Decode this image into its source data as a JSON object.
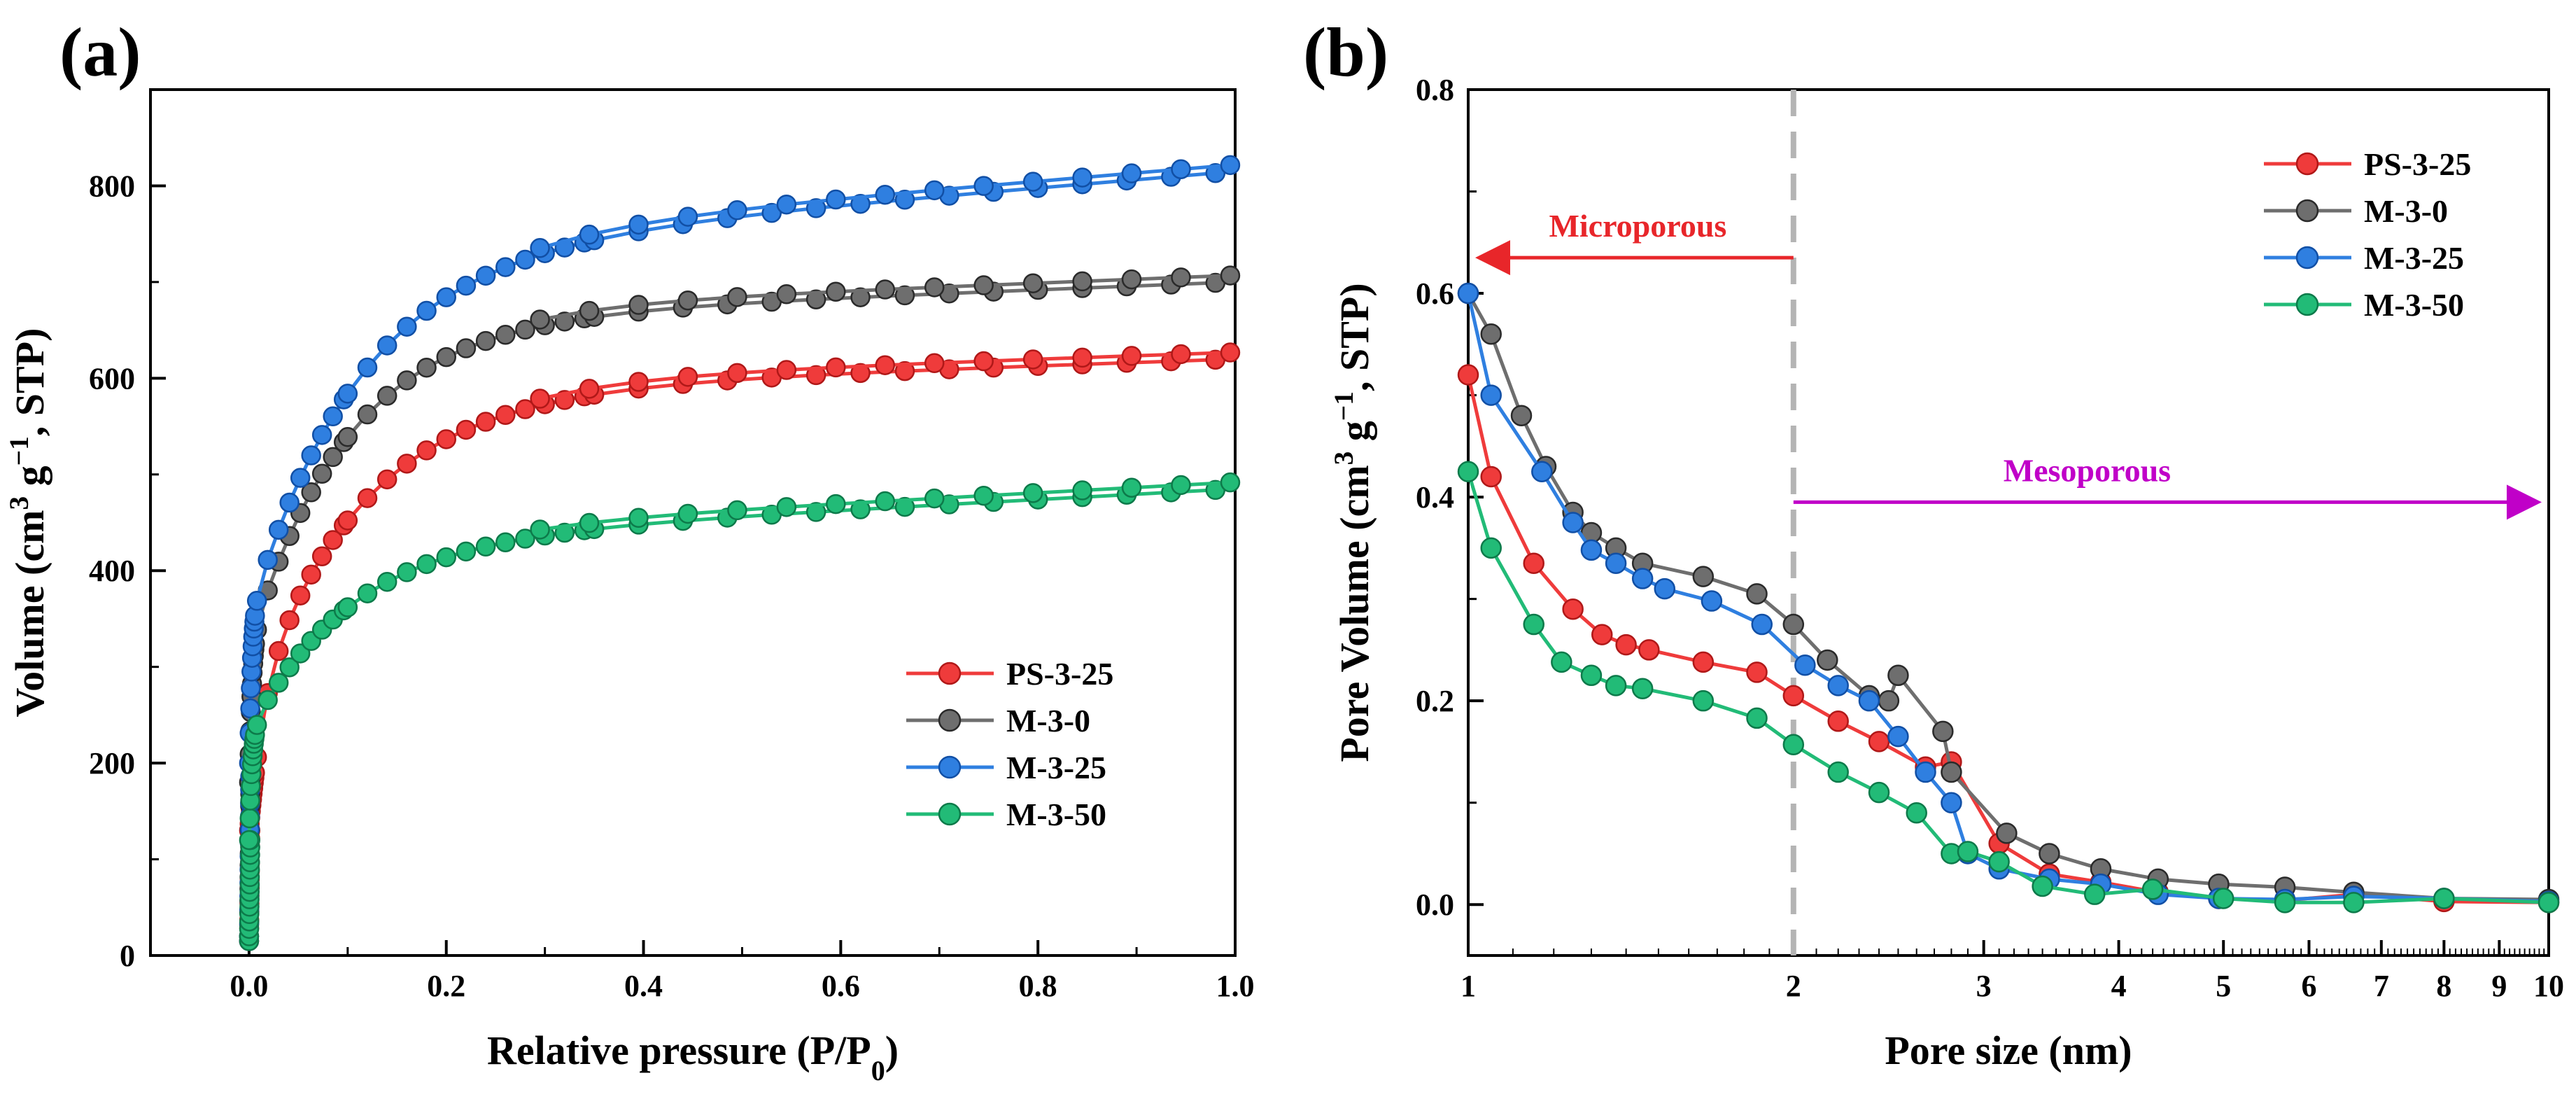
{
  "chart_data": [
    {
      "type": "line",
      "panel_label": "(a)",
      "xlabel": "Relative pressure (P/P",
      "xlabel_sub": "0",
      "xlabel_end": ")",
      "ylabel": "Volume (cm",
      "ylabel_sup": "3",
      "ylabel_mid": " g",
      "ylabel_sup2": "−1",
      "ylabel_end": ", STP)",
      "xlim": [
        -0.1,
        1.0
      ],
      "ylim": [
        0,
        900
      ],
      "x_ticks": [
        0.0,
        0.2,
        0.4,
        0.6,
        0.8,
        1.0
      ],
      "x_tick_labels": [
        "0.0",
        "0.2",
        "0.4",
        "0.6",
        "0.8",
        "1.0"
      ],
      "y_ticks": [
        0,
        200,
        400,
        600,
        800
      ],
      "y_tick_labels": [
        "0",
        "200",
        "400",
        "600",
        "800"
      ],
      "legend_position": "bottom-right",
      "series": [
        {
          "name": "PS-3-25",
          "color": "#ef3b3b",
          "edge": "#b01818",
          "params": {
            "v0": 130,
            "k1": 120,
            "a1": 6,
            "k2": 335,
            "a2": 9,
            "k3": 35
          }
        },
        {
          "name": "M-3-0",
          "color": "#6e6e6e",
          "edge": "#2a2a2a",
          "params": {
            "v0": 180,
            "k1": 140,
            "a1": 30,
            "k2": 340,
            "a2": 10,
            "k3": 40
          }
        },
        {
          "name": "M-3-25",
          "color": "#2f7fe0",
          "edge": "#114fa5",
          "params": {
            "v0": 200,
            "k1": 150,
            "a1": 30,
            "k2": 380,
            "a2": 9,
            "k3": 85
          }
        },
        {
          "name": "M-3-50",
          "color": "#22bb77",
          "edge": "#0d7a4a",
          "params": {
            "v0": 120,
            "k1": 110,
            "a1": 30,
            "k2": 200,
            "a2": 10,
            "k3": 55
          }
        }
      ]
    },
    {
      "type": "line",
      "panel_label": "(b)",
      "xlabel": "Pore size (nm)",
      "ylabel": "Pore Volume (cm",
      "ylabel_sup": "3",
      "ylabel_mid": " g",
      "ylabel_sup2": "−1",
      "ylabel_end": ", STP)",
      "xscale": "log",
      "xlim": [
        1,
        10
      ],
      "ylim": [
        -0.05,
        0.8
      ],
      "x_ticks": [
        1,
        2,
        3,
        4,
        5,
        6,
        7,
        8,
        9,
        10
      ],
      "x_tick_labels": [
        "1",
        "2",
        "3",
        "4",
        "5",
        "6",
        "7",
        "8",
        "9",
        "10"
      ],
      "y_ticks": [
        0.0,
        0.2,
        0.4,
        0.6,
        0.8
      ],
      "y_tick_labels": [
        "0.0",
        "0.2",
        "0.4",
        "0.6",
        "0.8"
      ],
      "legend_position": "top-right",
      "divider_x": 2,
      "annotations": [
        {
          "text": "Microporous",
          "color": "#e8262a",
          "arrow_from_x": 2,
          "arrow_to_x": 1,
          "y": 0.635,
          "direction": "left"
        },
        {
          "text": "Mesoporous",
          "color": "#c000c8",
          "arrow_from_x": 2,
          "arrow_to_x": 10,
          "y": 0.395,
          "direction": "right"
        }
      ],
      "series": [
        {
          "name": "PS-3-25",
          "color": "#ef3b3b",
          "edge": "#b01818",
          "x": [
            1.0,
            1.05,
            1.15,
            1.25,
            1.33,
            1.4,
            1.47,
            1.65,
            1.85,
            2.0,
            2.2,
            2.4,
            2.65,
            2.8,
            3.1,
            3.45,
            3.85,
            4.35,
            4.95,
            5.7,
            6.6,
            8.0,
            10.0
          ],
          "y": [
            0.52,
            0.42,
            0.335,
            0.29,
            0.265,
            0.255,
            0.25,
            0.238,
            0.228,
            0.205,
            0.18,
            0.16,
            0.135,
            0.14,
            0.06,
            0.03,
            0.022,
            0.012,
            0.006,
            0.004,
            0.01,
            0.003,
            0.002
          ]
        },
        {
          "name": "M-3-0",
          "color": "#6e6e6e",
          "edge": "#2a2a2a",
          "x": [
            1.0,
            1.05,
            1.12,
            1.18,
            1.25,
            1.3,
            1.37,
            1.45,
            1.65,
            1.85,
            2.0,
            2.15,
            2.35,
            2.45,
            2.5,
            2.75,
            2.8,
            3.15,
            3.45,
            3.85,
            4.35,
            4.95,
            5.7,
            6.6,
            8.0,
            10.0
          ],
          "y": [
            0.6,
            0.56,
            0.48,
            0.43,
            0.385,
            0.365,
            0.35,
            0.335,
            0.322,
            0.305,
            0.275,
            0.24,
            0.205,
            0.2,
            0.225,
            0.17,
            0.13,
            0.07,
            0.05,
            0.035,
            0.025,
            0.02,
            0.017,
            0.012,
            0.006,
            0.005
          ]
        },
        {
          "name": "M-3-25",
          "color": "#2f7fe0",
          "edge": "#114fa5",
          "x": [
            1.0,
            1.05,
            1.17,
            1.25,
            1.3,
            1.37,
            1.45,
            1.52,
            1.68,
            1.87,
            2.05,
            2.2,
            2.35,
            2.5,
            2.65,
            2.8,
            2.9,
            3.1,
            3.45,
            3.85,
            4.35,
            4.95,
            5.7,
            6.6,
            8.0,
            10.0
          ],
          "y": [
            0.6,
            0.5,
            0.425,
            0.375,
            0.348,
            0.335,
            0.32,
            0.31,
            0.298,
            0.275,
            0.235,
            0.215,
            0.2,
            0.165,
            0.13,
            0.1,
            0.05,
            0.035,
            0.025,
            0.02,
            0.01,
            0.006,
            0.005,
            0.008,
            0.006,
            0.003
          ]
        },
        {
          "name": "M-3-50",
          "color": "#22bb77",
          "edge": "#0d7a4a",
          "x": [
            1.0,
            1.05,
            1.15,
            1.22,
            1.3,
            1.37,
            1.45,
            1.65,
            1.85,
            2.0,
            2.2,
            2.4,
            2.6,
            2.8,
            2.9,
            3.1,
            3.4,
            3.8,
            4.3,
            5.0,
            5.7,
            6.6,
            8.0,
            10.0
          ],
          "y": [
            0.425,
            0.35,
            0.275,
            0.238,
            0.225,
            0.215,
            0.212,
            0.2,
            0.183,
            0.157,
            0.13,
            0.11,
            0.09,
            0.05,
            0.052,
            0.042,
            0.018,
            0.01,
            0.015,
            0.006,
            0.002,
            0.002,
            0.006,
            0.002
          ]
        }
      ]
    }
  ]
}
